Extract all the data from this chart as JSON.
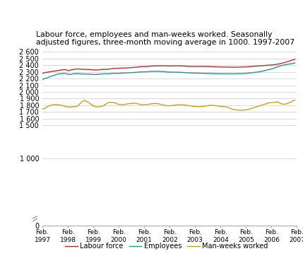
{
  "title": "Labour force, employees and man-weeks worked. Seasonally\nadjusted figures, three-month moving average in 1000. 1997-2007",
  "line_colors": {
    "labour_force": "#b03030",
    "employees": "#2a9090",
    "man_weeks": "#c8a020"
  },
  "legend_labels": [
    "Labour force",
    "Employees",
    "Man-weeks worked"
  ],
  "labour_force": [
    2280,
    2290,
    2295,
    2300,
    2305,
    2310,
    2315,
    2320,
    2325,
    2330,
    2335,
    2335,
    2320,
    2325,
    2335,
    2340,
    2345,
    2345,
    2342,
    2340,
    2340,
    2338,
    2337,
    2335,
    2330,
    2330,
    2330,
    2335,
    2338,
    2340,
    2340,
    2342,
    2345,
    2350,
    2355,
    2355,
    2355,
    2358,
    2360,
    2360,
    2362,
    2362,
    2365,
    2368,
    2370,
    2375,
    2378,
    2380,
    2380,
    2382,
    2385,
    2387,
    2390,
    2390,
    2392,
    2393,
    2393,
    2393,
    2392,
    2390,
    2390,
    2390,
    2392,
    2393,
    2393,
    2392,
    2390,
    2388,
    2386,
    2385,
    2383,
    2382,
    2382,
    2382,
    2383,
    2383,
    2383,
    2382,
    2381,
    2380,
    2379,
    2378,
    2377,
    2376,
    2375,
    2374,
    2373,
    2373,
    2372,
    2371,
    2370,
    2371,
    2372,
    2373,
    2374,
    2375,
    2376,
    2378,
    2380,
    2383,
    2386,
    2388,
    2390,
    2392,
    2395,
    2398,
    2401,
    2403,
    2405,
    2408,
    2412,
    2418,
    2424,
    2432,
    2440,
    2450,
    2460,
    2470,
    2480,
    2490
  ],
  "employees": [
    2190,
    2200,
    2210,
    2222,
    2235,
    2245,
    2255,
    2265,
    2272,
    2275,
    2278,
    2278,
    2265,
    2262,
    2268,
    2272,
    2275,
    2275,
    2272,
    2270,
    2270,
    2268,
    2267,
    2265,
    2262,
    2262,
    2263,
    2267,
    2270,
    2272,
    2272,
    2273,
    2275,
    2278,
    2280,
    2280,
    2280,
    2282,
    2285,
    2285,
    2287,
    2288,
    2290,
    2292,
    2294,
    2298,
    2300,
    2302,
    2302,
    2303,
    2305,
    2307,
    2310,
    2310,
    2310,
    2310,
    2308,
    2306,
    2303,
    2300,
    2298,
    2297,
    2297,
    2297,
    2296,
    2295,
    2293,
    2291,
    2289,
    2287,
    2285,
    2284,
    2283,
    2282,
    2282,
    2281,
    2280,
    2279,
    2278,
    2277,
    2276,
    2275,
    2274,
    2273,
    2273,
    2273,
    2273,
    2272,
    2272,
    2272,
    2272,
    2273,
    2274,
    2275,
    2276,
    2278,
    2280,
    2283,
    2286,
    2290,
    2294,
    2298,
    2302,
    2308,
    2315,
    2322,
    2330,
    2338,
    2345,
    2355,
    2368,
    2380,
    2390,
    2398,
    2405,
    2412,
    2418,
    2422,
    2428,
    2435
  ],
  "man_weeks": [
    1745,
    1755,
    1770,
    1790,
    1800,
    1808,
    1812,
    1810,
    1805,
    1800,
    1790,
    1780,
    1775,
    1772,
    1775,
    1778,
    1782,
    1800,
    1835,
    1862,
    1870,
    1855,
    1838,
    1815,
    1790,
    1780,
    1775,
    1778,
    1785,
    1800,
    1820,
    1840,
    1845,
    1843,
    1838,
    1825,
    1815,
    1808,
    1810,
    1815,
    1820,
    1825,
    1830,
    1832,
    1828,
    1822,
    1815,
    1808,
    1810,
    1812,
    1815,
    1820,
    1825,
    1828,
    1825,
    1820,
    1812,
    1805,
    1798,
    1793,
    1793,
    1795,
    1800,
    1805,
    1808,
    1810,
    1808,
    1805,
    1800,
    1795,
    1790,
    1785,
    1782,
    1780,
    1780,
    1782,
    1785,
    1790,
    1795,
    1800,
    1800,
    1797,
    1793,
    1788,
    1783,
    1780,
    1778,
    1773,
    1762,
    1748,
    1738,
    1732,
    1728,
    1726,
    1726,
    1728,
    1732,
    1738,
    1748,
    1758,
    1768,
    1778,
    1788,
    1798,
    1808,
    1818,
    1828,
    1838,
    1842,
    1845,
    1848,
    1852,
    1832,
    1820,
    1815,
    1822,
    1835,
    1848,
    1862,
    1878
  ],
  "xtick_positions": [
    0,
    12,
    24,
    36,
    48,
    60,
    72,
    84,
    96,
    108,
    120
  ],
  "xtick_labels": [
    "Feb.\n1997",
    "Feb.\n1998",
    "Feb.\n1999",
    "Feb.\n2000",
    "Feb.\n2001",
    "Feb.\n2002",
    "Feb.\n2003",
    "Feb.\n2004",
    "Feb.\n2005",
    "Feb.\n2006",
    "Feb.\n2007"
  ],
  "grid_color": "#cccccc",
  "background_color": "#ffffff"
}
